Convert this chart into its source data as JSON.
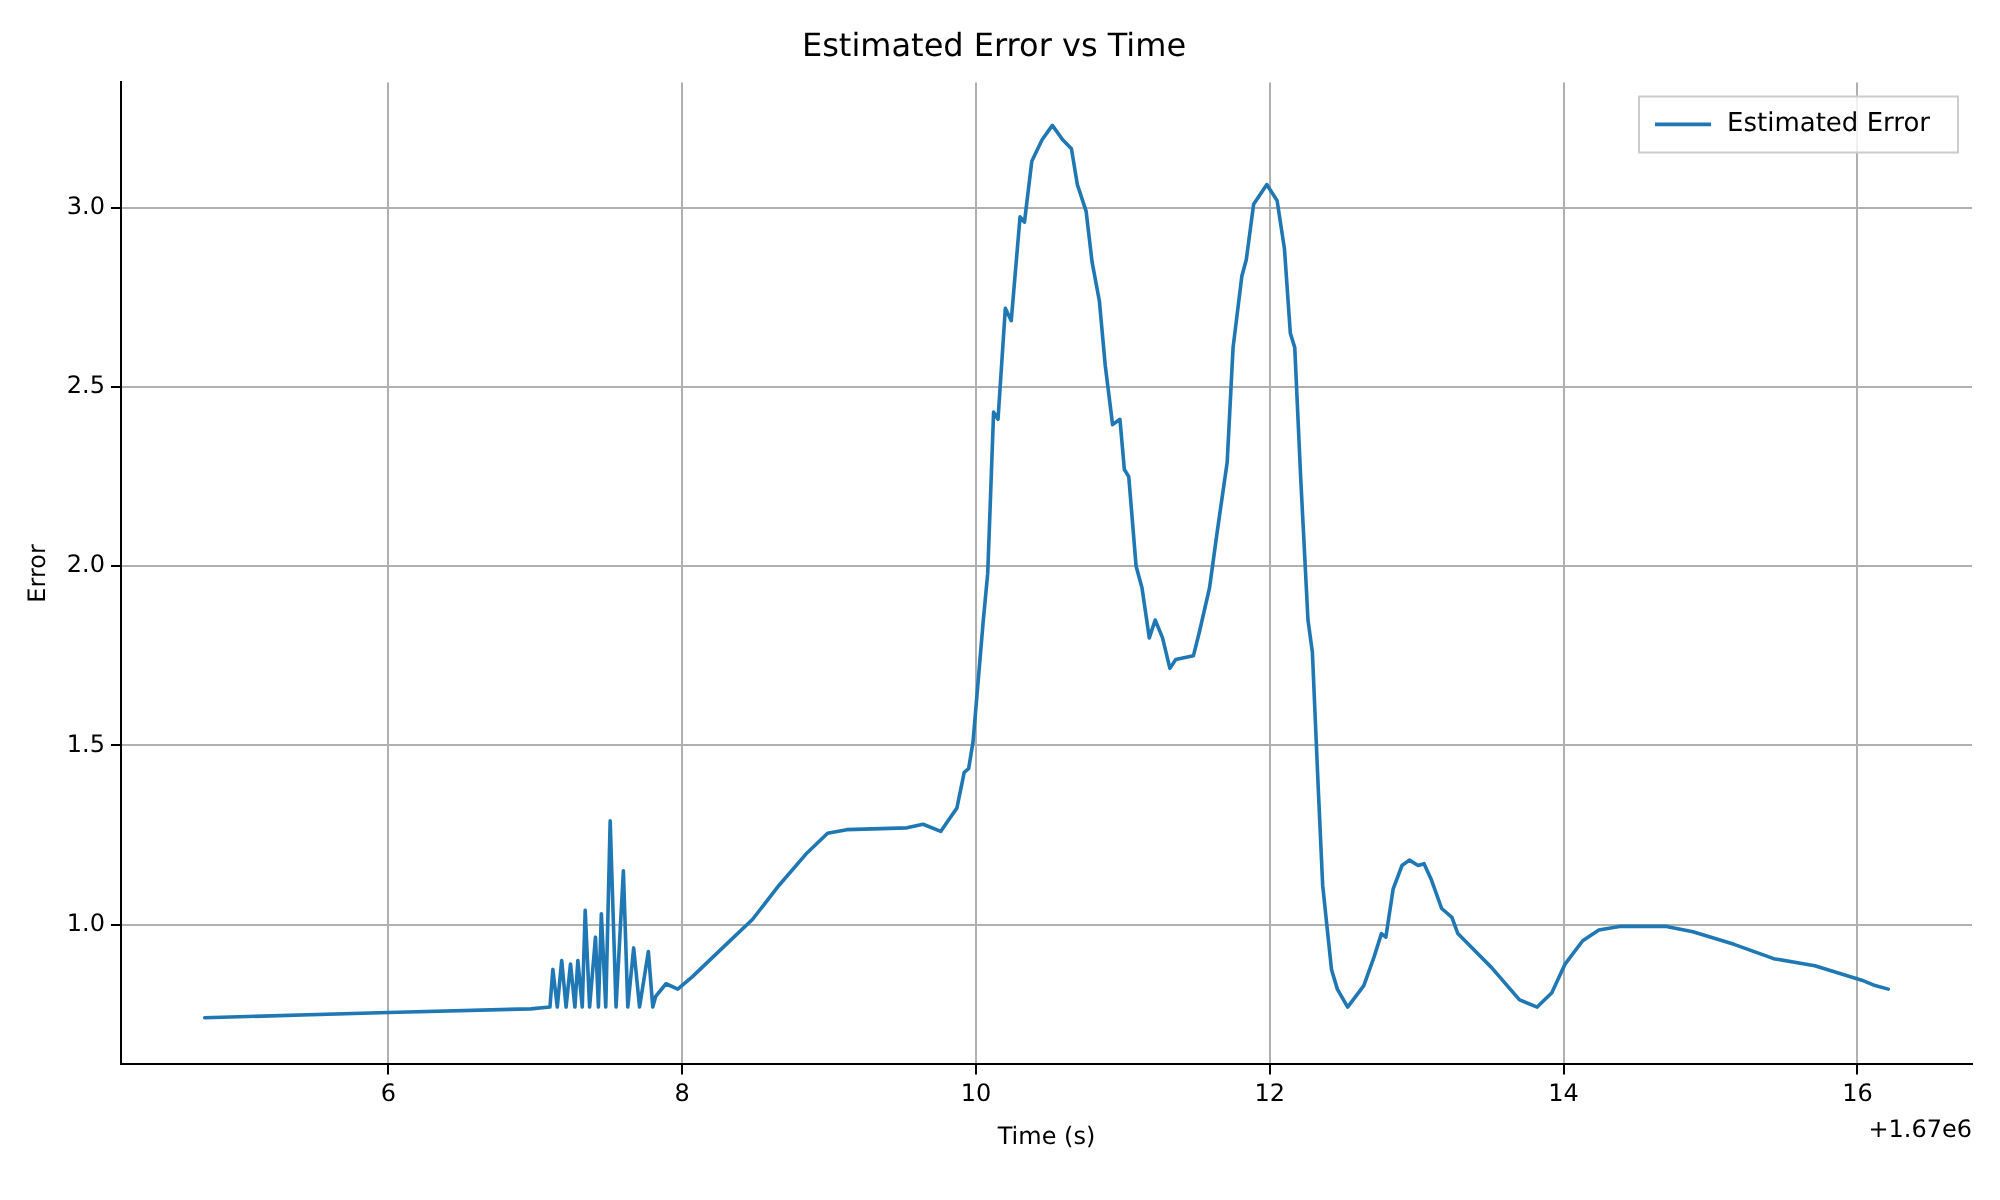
{
  "chart_data": {
    "type": "line",
    "title": "Estimated Error vs Time",
    "xlabel": "Time (s)",
    "ylabel": "Error",
    "annotations": [
      "+1.67e6"
    ],
    "xlim": [
      4.18,
      16.78
    ],
    "ylim": [
      0.61,
      3.35
    ],
    "xticks": [
      6,
      8,
      10,
      12,
      14,
      16
    ],
    "yticks": [
      {
        "value": 1,
        "label": "1.0"
      },
      {
        "value": 1.5,
        "label": "1.5"
      },
      {
        "value": 2,
        "label": "2.0"
      },
      {
        "value": 2.5,
        "label": "2.5"
      },
      {
        "value": 3,
        "label": "3.0"
      }
    ],
    "grid": true,
    "legend": "top right",
    "marker": "none",
    "line_style": "solid",
    "series": [
      {
        "name": "Estimated Error",
        "color": "#1f77b4",
        "x": [
          4.75,
          6.0,
          6.97,
          7.1,
          7.12,
          7.15,
          7.18,
          7.21,
          7.24,
          7.27,
          7.29,
          7.32,
          7.34,
          7.37,
          7.41,
          7.43,
          7.45,
          7.48,
          7.51,
          7.55,
          7.6,
          7.63,
          7.67,
          7.71,
          7.77,
          7.8,
          7.82,
          7.89,
          7.97,
          8.07,
          8.3,
          8.48,
          8.66,
          8.85,
          8.99,
          9.12,
          9.53,
          9.64,
          9.76,
          9.81,
          9.87,
          9.92,
          9.95,
          9.98,
          10.05,
          10.08,
          10.12,
          10.15,
          10.2,
          10.24,
          10.3,
          10.33,
          10.38,
          10.45,
          10.52,
          10.59,
          10.65,
          10.69,
          10.75,
          10.79,
          10.84,
          10.88,
          10.93,
          10.98,
          11.01,
          11.04,
          11.09,
          11.13,
          11.18,
          11.22,
          11.27,
          11.32,
          11.36,
          11.48,
          11.52,
          11.59,
          11.64,
          11.71,
          11.75,
          11.81,
          11.84,
          11.89,
          11.98,
          12.05,
          12.1,
          12.14,
          12.17,
          12.21,
          12.26,
          12.29,
          12.33,
          12.36,
          12.42,
          12.46,
          12.53,
          12.64,
          12.71,
          12.76,
          12.79,
          12.84,
          12.9,
          12.95,
          13.01,
          13.05,
          13.1,
          13.17,
          13.24,
          13.28,
          13.51,
          13.7,
          13.82,
          13.92,
          14.01,
          14.13,
          14.24,
          14.38,
          14.7,
          14.88,
          15.16,
          15.43,
          15.71,
          16.03,
          16.12,
          16.21
        ],
        "values": [
          0.74,
          0.755,
          0.765,
          0.77,
          0.875,
          0.77,
          0.9,
          0.77,
          0.89,
          0.77,
          0.9,
          0.77,
          1.04,
          0.77,
          0.965,
          0.77,
          1.03,
          0.77,
          1.29,
          0.77,
          1.15,
          0.77,
          0.935,
          0.77,
          0.925,
          0.77,
          0.8,
          0.835,
          0.82,
          0.855,
          0.945,
          1.015,
          1.11,
          1.2,
          1.255,
          1.265,
          1.27,
          1.28,
          1.26,
          1.29,
          1.325,
          1.425,
          1.435,
          1.51,
          1.85,
          1.98,
          2.43,
          2.41,
          2.72,
          2.685,
          2.975,
          2.96,
          3.13,
          3.19,
          3.23,
          3.19,
          3.165,
          3.065,
          2.99,
          2.85,
          2.74,
          2.56,
          2.395,
          2.41,
          2.27,
          2.25,
          2.0,
          1.94,
          1.8,
          1.85,
          1.8,
          1.715,
          1.74,
          1.75,
          1.815,
          1.94,
          2.09,
          2.29,
          2.61,
          2.81,
          2.855,
          3.01,
          3.065,
          3.02,
          2.885,
          2.65,
          2.61,
          2.25,
          1.85,
          1.76,
          1.38,
          1.11,
          0.875,
          0.82,
          0.77,
          0.83,
          0.91,
          0.975,
          0.965,
          1.1,
          1.165,
          1.18,
          1.165,
          1.17,
          1.125,
          1.045,
          1.02,
          0.975,
          0.88,
          0.79,
          0.77,
          0.81,
          0.89,
          0.955,
          0.985,
          0.995,
          0.995,
          0.98,
          0.945,
          0.905,
          0.885,
          0.845,
          0.83,
          0.82
        ]
      }
    ]
  }
}
